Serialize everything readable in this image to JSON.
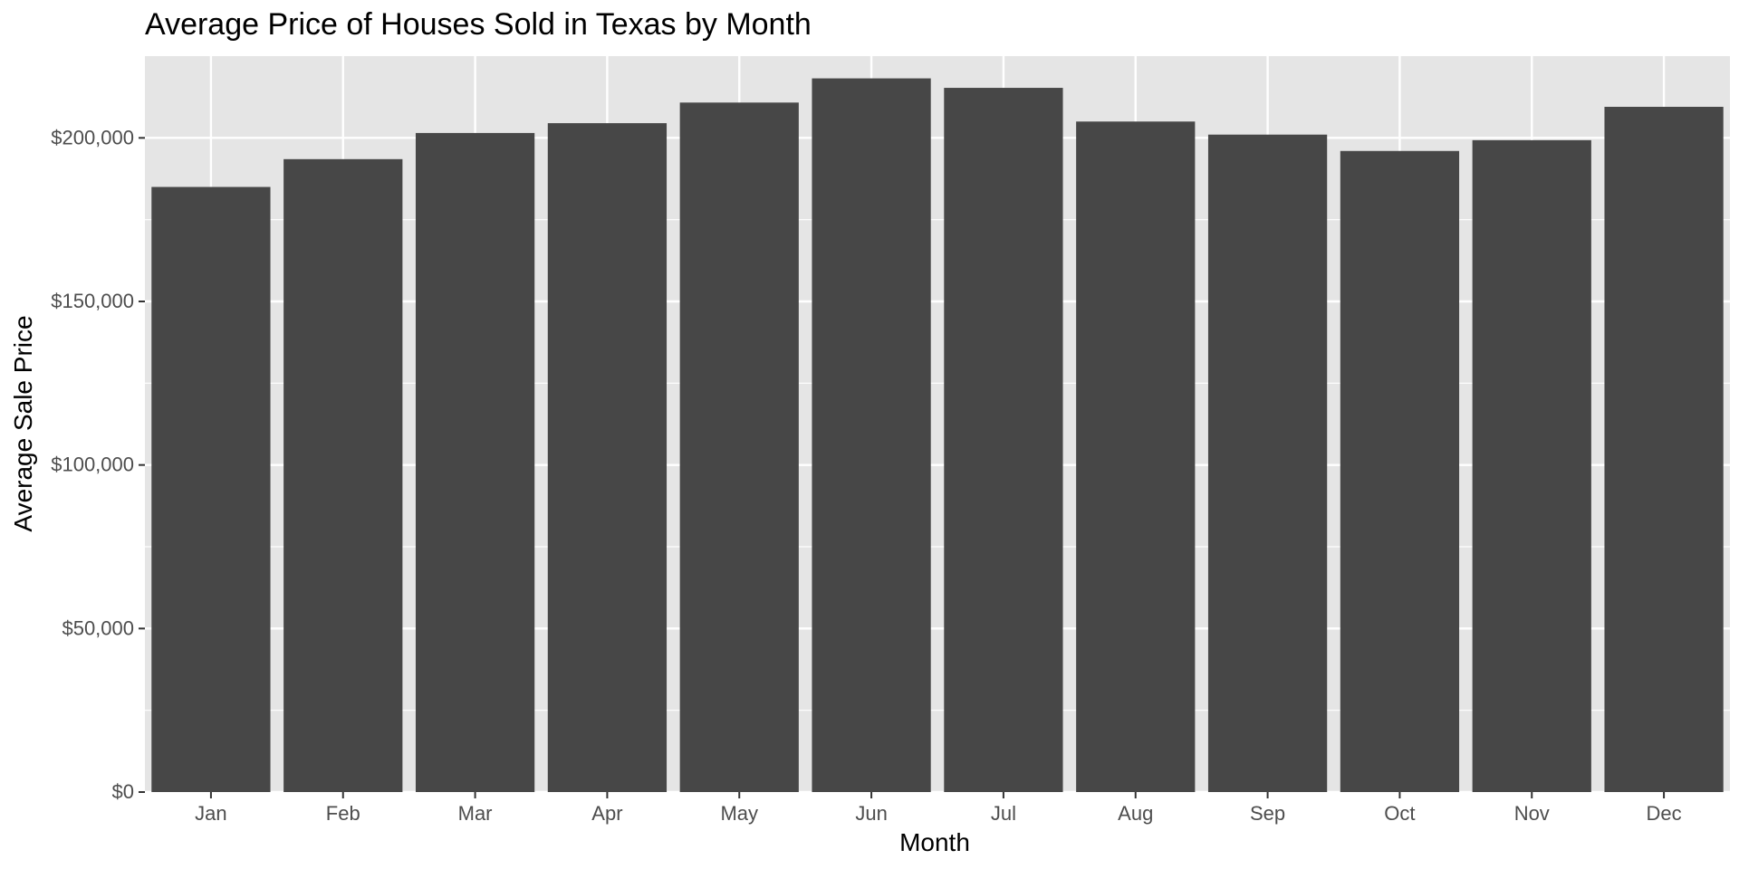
{
  "chart_data": {
    "type": "bar",
    "title": "Average Price of Houses Sold in Texas by Month",
    "xlabel": "Month",
    "ylabel": "Average Sale Price",
    "categories": [
      "Jan",
      "Feb",
      "Mar",
      "Apr",
      "May",
      "Jun",
      "Jul",
      "Aug",
      "Sep",
      "Oct",
      "Nov",
      "Dec"
    ],
    "values": [
      185000,
      193500,
      201500,
      204500,
      210800,
      218200,
      215300,
      205000,
      201000,
      196000,
      199300,
      209500
    ],
    "ylim": [
      0,
      225000
    ],
    "yticks": [
      0,
      50000,
      100000,
      150000,
      200000
    ],
    "ytick_labels": [
      "$0",
      "$50,000",
      "$100,000",
      "$150,000",
      "$200,000"
    ],
    "grid": true,
    "legend": "none",
    "colors": {
      "bar": "#474747",
      "panel": "#e5e5e5",
      "grid": "#ffffff",
      "tick_text": "#4d4d4d",
      "tick_mark": "#333333"
    }
  }
}
